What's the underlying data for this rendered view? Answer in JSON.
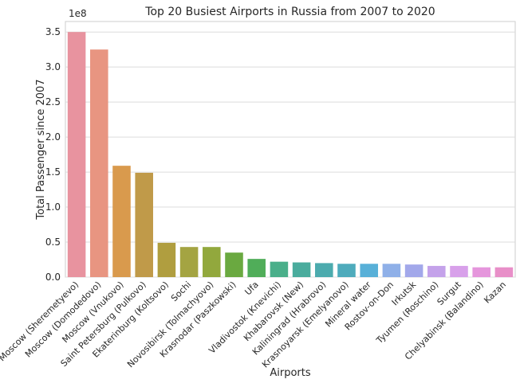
{
  "chart_data": {
    "type": "bar",
    "title": "Top 20 Busiest Airports in Russia from 2007 to 2020",
    "xlabel": "Airports",
    "ylabel": "Total Passenger since 2007",
    "y_offset_label": "1e8",
    "ylim": [
      0,
      3.65
    ],
    "yticks": [
      "0.0",
      "0.5",
      "1.0",
      "1.5",
      "2.0",
      "2.5",
      "3.0",
      "3.5"
    ],
    "grid": true,
    "categories": [
      "Moscow (Sheremetyevo)",
      "Moscow (Domodedovo)",
      "Moscow (Vnukovo)",
      "Saint Petersburg (Pulkovo)",
      "Ekaterinburg (Koltsovo)",
      "Sochi",
      "Novosibirsk (Tolmachyovo)",
      "Krasnodar (Paszkowski)",
      "Ufa",
      "Vladivostok (Knevichi)",
      "Khabarovsk (New)",
      "Kaliningrad (Hrabrovo)",
      "Krasnoyarsk (Emelyanovo)",
      "Mineral water",
      "Rostov-on-Don",
      "Irkutsk",
      "Tyumen (Roschino)",
      "Surgut",
      "Chelyabinsk (Balandino)",
      "Kazan"
    ],
    "values": [
      3.5,
      3.25,
      1.59,
      1.49,
      0.49,
      0.43,
      0.43,
      0.35,
      0.26,
      0.22,
      0.21,
      0.2,
      0.19,
      0.19,
      0.19,
      0.18,
      0.16,
      0.16,
      0.14,
      0.14
    ],
    "colors": [
      "#e8939f",
      "#e89581",
      "#d99a4d",
      "#c09a49",
      "#b09e3f",
      "#a4a442",
      "#92a83d",
      "#6aa940",
      "#50ad59",
      "#4aaf8a",
      "#4aac9d",
      "#4cabae",
      "#4eabbc",
      "#58b0d8",
      "#8fb0e8",
      "#a2a8ea",
      "#c4a2ea",
      "#d8a0ea",
      "#e596dc",
      "#e88fc8"
    ]
  }
}
